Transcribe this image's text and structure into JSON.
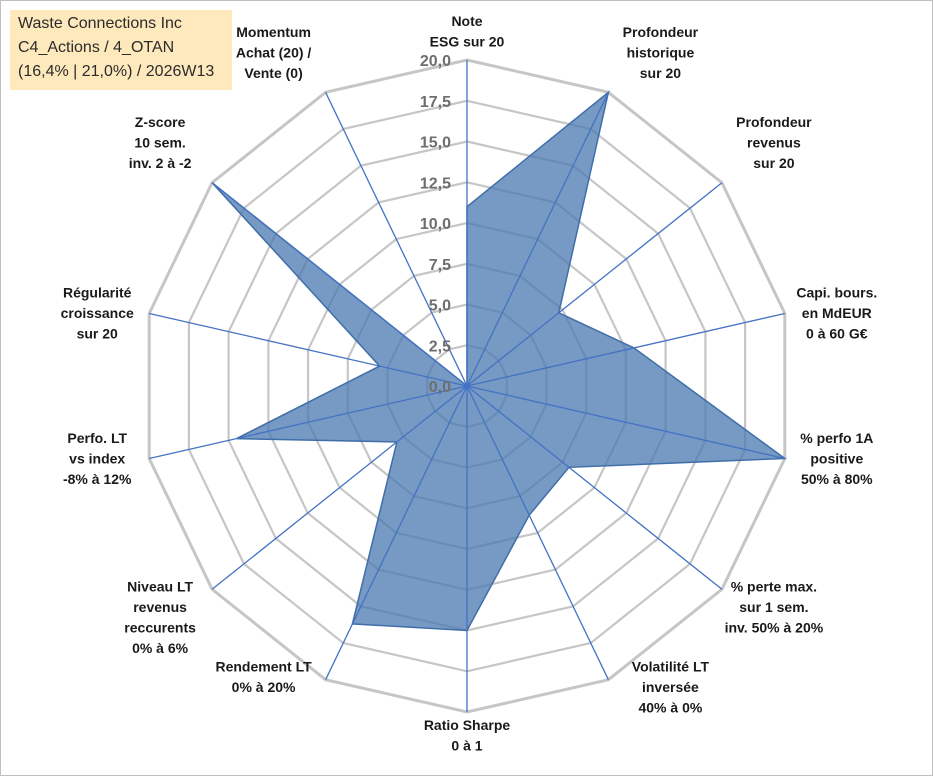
{
  "title_box": {
    "line1": "Waste Connections Inc",
    "line2": "C4_Actions / 4_OTAN",
    "line3": "(16,4% | 21,0%) / 2026W13"
  },
  "chart_data": {
    "type": "radar",
    "rmin": 0,
    "rmax": 20,
    "ticks": [
      "0,0",
      "2,5",
      "5,0",
      "7,5",
      "10,0",
      "12,5",
      "15,0",
      "17,5",
      "20,0"
    ],
    "categories": [
      [
        "Note",
        "ESG sur 20"
      ],
      [
        "Profondeur",
        "historique",
        "sur 20"
      ],
      [
        "Profondeur",
        "revenus",
        "sur 20"
      ],
      [
        "Capi. bours.",
        "en MdEUR",
        "0 à 60 G€"
      ],
      [
        "% perfo 1A",
        "positive",
        "50% à 80%"
      ],
      [
        "% perte max.",
        "sur 1 sem.",
        "inv. 50% à 20%"
      ],
      [
        "Volatilité LT",
        "inversée",
        "40% à 0%"
      ],
      [
        "Ratio Sharpe",
        "0 à 1"
      ],
      [
        "Rendement LT",
        "0% à 20%"
      ],
      [
        "Niveau LT",
        "revenus",
        "reccurents",
        "0% à 6%"
      ],
      [
        "Perfo. LT",
        "vs index",
        "-8% à 12%"
      ],
      [
        "Régularité",
        "croissance",
        "sur 20"
      ],
      [
        "Z-score",
        "10 sem.",
        "inv. 2 à -2"
      ],
      [
        "Momentum",
        "Achat (20) /",
        "Vente (0)"
      ]
    ],
    "values": [
      11,
      20,
      7.2,
      10.5,
      20,
      8,
      8.8,
      15,
      16.2,
      5.5,
      14.5,
      5.5,
      20,
      0
    ],
    "colors": {
      "fill": "#4a78b0",
      "fill_opacity": 0.75,
      "stroke": "#3f6ea8",
      "grid": "#c6c6c6",
      "spoke": "#4472c4"
    },
    "grid": true
  }
}
